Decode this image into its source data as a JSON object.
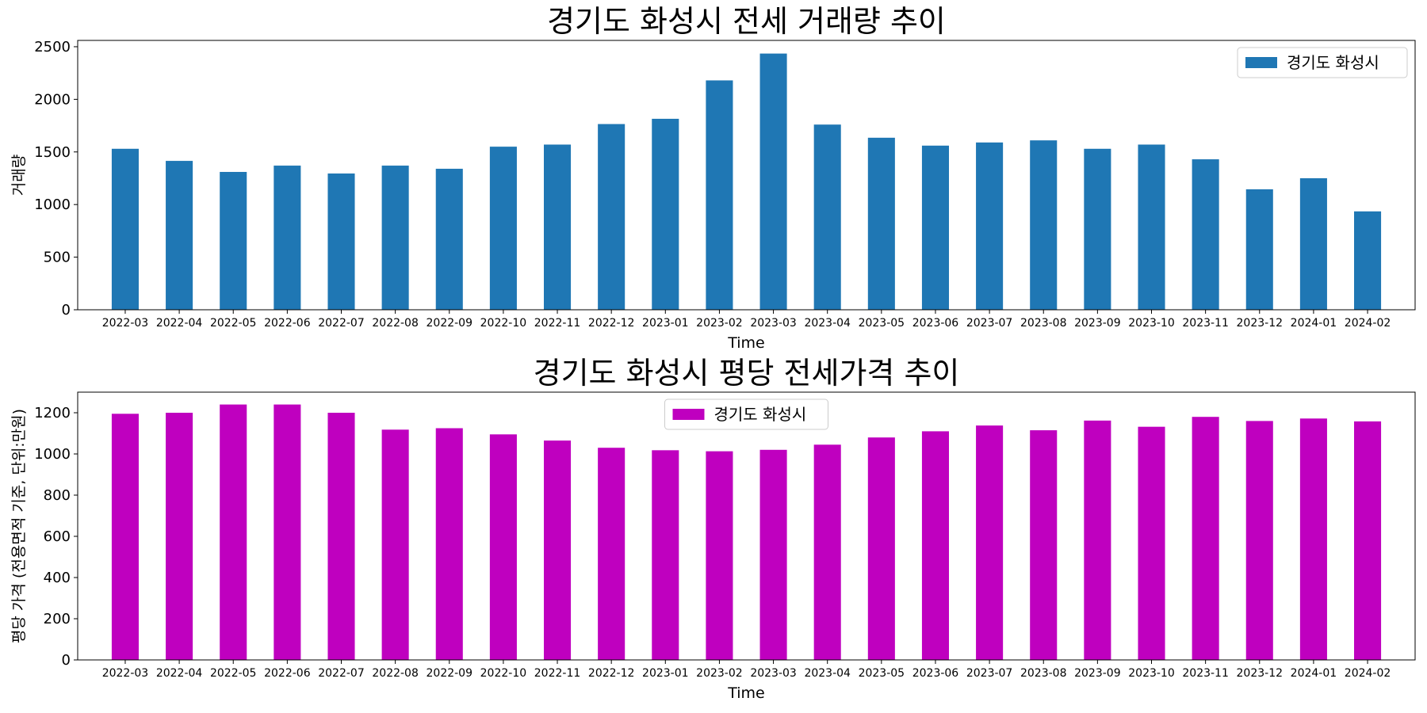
{
  "chart_data": [
    {
      "type": "bar",
      "title": "경기도 화성시 전세 거래량 추이",
      "xlabel": "Time",
      "ylabel": "거래량",
      "ylim": [
        0,
        2560
      ],
      "yticks": [
        0,
        500,
        1000,
        1500,
        2000,
        2500
      ],
      "legend": "top-right",
      "categories": [
        "2022-03",
        "2022-04",
        "2022-05",
        "2022-06",
        "2022-07",
        "2022-08",
        "2022-09",
        "2022-10",
        "2022-11",
        "2022-12",
        "2023-01",
        "2023-02",
        "2023-03",
        "2023-04",
        "2023-05",
        "2023-06",
        "2023-07",
        "2023-08",
        "2023-09",
        "2023-10",
        "2023-11",
        "2023-12",
        "2024-01",
        "2024-02"
      ],
      "series": [
        {
          "name": "경기도 화성시",
          "color": "#1f77b4",
          "values": [
            1530,
            1415,
            1310,
            1370,
            1295,
            1370,
            1340,
            1550,
            1570,
            1765,
            1815,
            2180,
            2435,
            1760,
            1635,
            1560,
            1590,
            1610,
            1530,
            1570,
            1430,
            1145,
            1250,
            935
          ]
        }
      ]
    },
    {
      "type": "bar",
      "title": "경기도 화성시 평당 전세가격 추이",
      "xlabel": "Time",
      "ylabel": "평당 가격 (전용면적 기준, 단위:만원)",
      "ylim": [
        0,
        1300
      ],
      "yticks": [
        0,
        200,
        400,
        600,
        800,
        1000,
        1200
      ],
      "legend": "top-center",
      "categories": [
        "2022-03",
        "2022-04",
        "2022-05",
        "2022-06",
        "2022-07",
        "2022-08",
        "2022-09",
        "2022-10",
        "2022-11",
        "2022-12",
        "2023-01",
        "2023-02",
        "2023-03",
        "2023-04",
        "2023-05",
        "2023-06",
        "2023-07",
        "2023-08",
        "2023-09",
        "2023-10",
        "2023-11",
        "2023-12",
        "2024-01",
        "2024-02"
      ],
      "series": [
        {
          "name": "경기도 화성시",
          "color": "#bf00bf",
          "values": [
            1195,
            1200,
            1240,
            1240,
            1200,
            1118,
            1125,
            1095,
            1065,
            1030,
            1018,
            1013,
            1020,
            1045,
            1080,
            1110,
            1138,
            1115,
            1162,
            1132,
            1180,
            1160,
            1172,
            1158
          ]
        }
      ]
    }
  ]
}
